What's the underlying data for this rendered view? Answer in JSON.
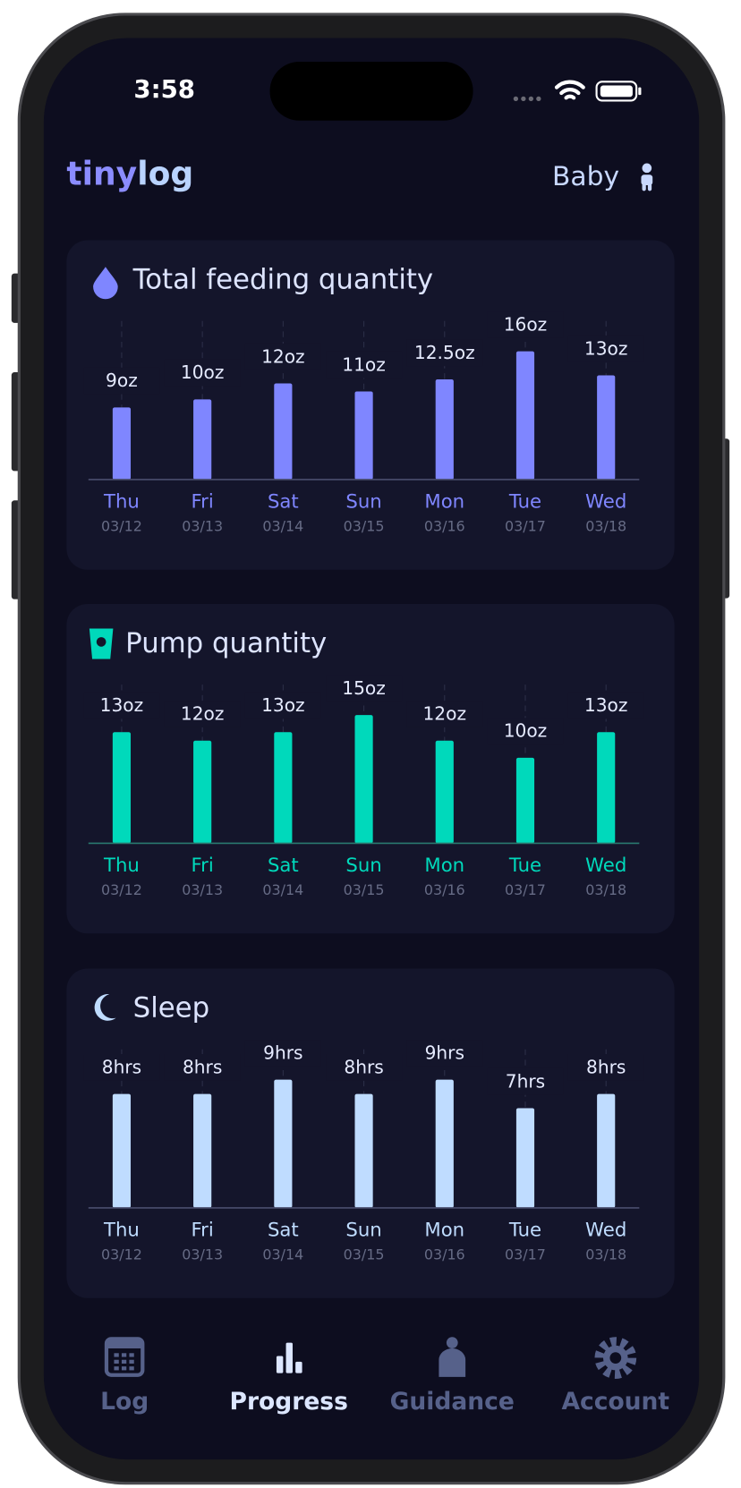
{
  "status_bar": {
    "time": "3:58"
  },
  "header": {
    "brand": {
      "first": "tiny",
      "second": "log"
    },
    "profile": "Baby"
  },
  "chart_data": [
    {
      "type": "bar",
      "title": "Total feeding quantity",
      "color": "#7f86ff",
      "categories": [
        "Thu",
        "Fri",
        "Sat",
        "Sun",
        "Mon",
        "Tue",
        "Wed"
      ],
      "dates": [
        "03/12",
        "03/13",
        "03/14",
        "03/15",
        "03/16",
        "03/17",
        "03/18"
      ],
      "values": [
        9,
        10,
        12,
        11,
        12.5,
        16,
        13
      ],
      "value_labels": [
        "9oz",
        "10oz",
        "12oz",
        "11oz",
        "12.5oz",
        "16oz",
        "13oz"
      ]
    },
    {
      "type": "bar",
      "title": "Pump quantity",
      "color": "#00d9bb",
      "categories": [
        "Thu",
        "Fri",
        "Sat",
        "Sun",
        "Mon",
        "Tue",
        "Wed"
      ],
      "dates": [
        "03/12",
        "03/13",
        "03/14",
        "03/15",
        "03/16",
        "03/17",
        "03/18"
      ],
      "values": [
        13,
        12,
        13,
        15,
        12,
        10,
        13
      ],
      "value_labels": [
        "13oz",
        "12oz",
        "13oz",
        "15oz",
        "12oz",
        "10oz",
        "13oz"
      ]
    },
    {
      "type": "bar",
      "title": "Sleep",
      "color": "#bfdcff",
      "categories": [
        "Thu",
        "Fri",
        "Sat",
        "Sun",
        "Mon",
        "Tue",
        "Wed"
      ],
      "dates": [
        "03/12",
        "03/13",
        "03/14",
        "03/15",
        "03/16",
        "03/17",
        "03/18"
      ],
      "values": [
        8,
        8,
        9,
        8,
        9,
        7,
        8
      ],
      "value_labels": [
        "8hrs",
        "8hrs",
        "9hrs",
        "8hrs",
        "9hrs",
        "7hrs",
        "8hrs"
      ]
    }
  ],
  "nav": {
    "items": [
      "Log",
      "Progress",
      "Guidance",
      "Account"
    ],
    "active": 1
  }
}
